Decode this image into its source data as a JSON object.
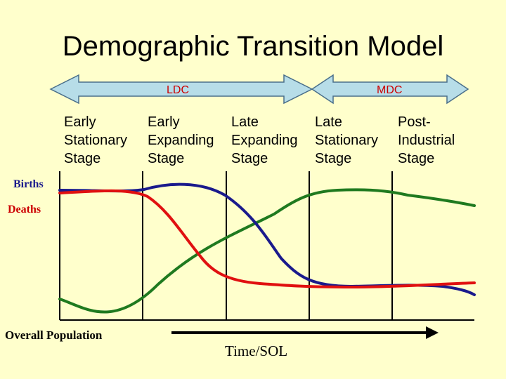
{
  "title": "Demographic Transition Model",
  "arrows": {
    "ldc_label": "LDC",
    "mdc_label": "MDC"
  },
  "stages": [
    {
      "label": "Early\nStationary\nStage"
    },
    {
      "label": "Early\nExpanding\nStage"
    },
    {
      "label": "Late\nExpanding\nStage"
    },
    {
      "label": "Late\nStationary\nStage"
    },
    {
      "label": "Post-\nIndustrial\nStage"
    }
  ],
  "legend": {
    "births": "Births",
    "deaths": "Deaths",
    "overall_population": "Overall Population"
  },
  "axis": {
    "time_label": "Time/SOL"
  },
  "colors": {
    "background": "#ffffcc",
    "arrow_fill": "#b7dde8",
    "arrow_stroke": "#4a6f8a",
    "arrow_text": "#cc0000",
    "births": "#1a1a8c",
    "deaths": "#e01010",
    "population": "#1f7a1f",
    "births_label": "#1a1a8c",
    "deaths_label": "#cc0000"
  }
}
